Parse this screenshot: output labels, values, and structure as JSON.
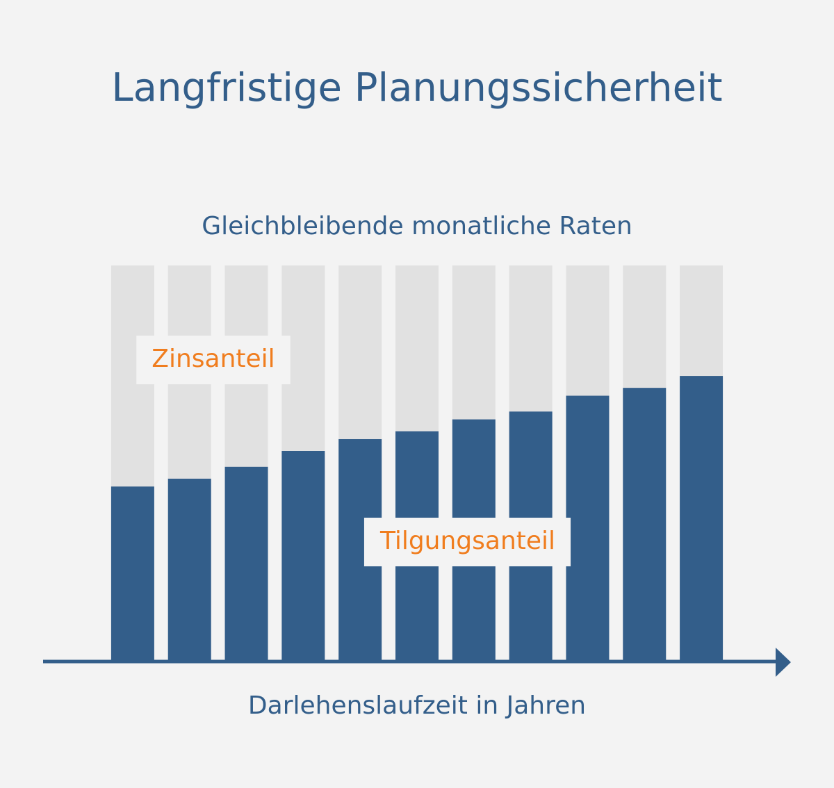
{
  "chart_data": {
    "type": "stacked_bar",
    "title": "Langfristige Planungssicherheit",
    "subtitle": "Gleichbleibende monatliche Raten",
    "x_label": "Darlehenslaufzeit in Jahren",
    "categories": [
      null,
      null,
      null,
      null,
      null,
      null,
      null,
      null,
      null,
      null,
      null
    ],
    "series": [
      {
        "name": "Tilgungsanteil",
        "color": "#335e8a",
        "values": [
          44,
          46,
          49,
          53,
          56,
          58,
          61,
          63,
          67,
          69,
          72
        ]
      },
      {
        "name": "Zinsanteil",
        "color": "#e1e1e1",
        "values": [
          56,
          54,
          51,
          47,
          44,
          42,
          39,
          37,
          33,
          31,
          28
        ]
      }
    ],
    "ylim": [
      0,
      100
    ],
    "label_color": "#f07d1e"
  }
}
